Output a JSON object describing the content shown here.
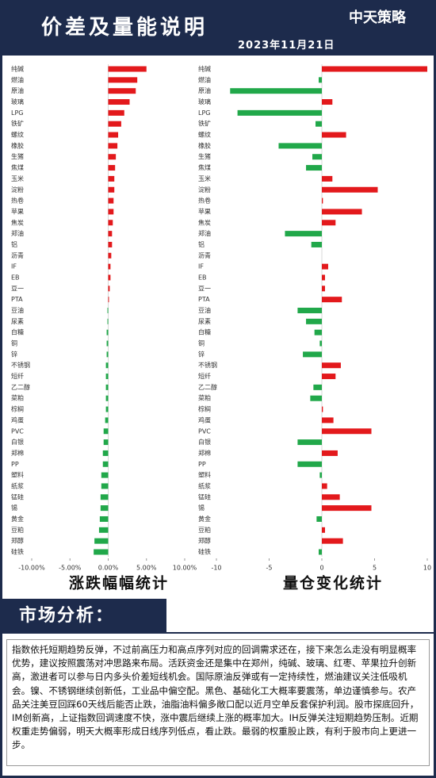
{
  "header": {
    "title": "价差及量能说明",
    "date": "2023年11月21日",
    "logo": "中天策略"
  },
  "chart_data": [
    {
      "type": "bar",
      "orientation": "horizontal",
      "title": "涨跌幅幅统计",
      "categories": [
        "纯碱",
        "燃油",
        "原油",
        "玻璃",
        "LPG",
        "铁矿",
        "螺纹",
        "橡胶",
        "生猪",
        "焦煤",
        "玉米",
        "淀粉",
        "热卷",
        "苹果",
        "焦炭",
        "郑油",
        "铝",
        "沥青",
        "IF",
        "EB",
        "豆一",
        "PTA",
        "豆油",
        "尿素",
        "白糖",
        "铜",
        "锌",
        "不锈钢",
        "短纤",
        "乙二醇",
        "菜粕",
        "棕榈",
        "鸡蛋",
        "PVC",
        "白银",
        "郑棉",
        "PP",
        "塑料",
        "纸浆",
        "锰硅",
        "锡",
        "黄金",
        "豆粕",
        "郑醇",
        "硅铁"
      ],
      "values": [
        5.0,
        3.8,
        3.6,
        2.8,
        2.1,
        1.7,
        1.3,
        1.2,
        1.0,
        0.9,
        0.8,
        0.8,
        0.7,
        0.7,
        0.6,
        0.5,
        0.5,
        0.4,
        0.3,
        0.3,
        0.2,
        0.1,
        -0.1,
        -0.1,
        -0.2,
        -0.2,
        -0.2,
        -0.3,
        -0.3,
        -0.3,
        -0.3,
        -0.3,
        -0.4,
        -0.6,
        -0.6,
        -0.7,
        -0.7,
        -0.9,
        -0.9,
        -1.0,
        -1.0,
        -1.1,
        -1.2,
        -1.8,
        -1.9
      ],
      "xlim": [
        -10,
        10
      ],
      "xticks": [
        {
          "value": -10,
          "label": "-10.00%"
        },
        {
          "value": -5,
          "label": "-5.00%"
        },
        {
          "value": 0,
          "label": "0.00%"
        },
        {
          "value": 5,
          "label": "5.00%"
        },
        {
          "value": 10,
          "label": "10.00%"
        }
      ],
      "positive_color": "#e3191c",
      "negative_color": "#21a84a"
    },
    {
      "type": "bar",
      "orientation": "horizontal",
      "title": "量仓变化统计",
      "categories": [
        "纯碱",
        "燃油",
        "原油",
        "玻璃",
        "LPG",
        "铁矿",
        "螺纹",
        "橡胶",
        "生猪",
        "焦煤",
        "玉米",
        "淀粉",
        "热卷",
        "苹果",
        "焦炭",
        "郑油",
        "铝",
        "沥青",
        "IF",
        "EB",
        "豆一",
        "PTA",
        "豆油",
        "尿素",
        "白糖",
        "铜",
        "锌",
        "不锈钢",
        "短纤",
        "乙二醇",
        "菜粕",
        "棕榈",
        "鸡蛋",
        "PVC",
        "白银",
        "郑棉",
        "PP",
        "塑料",
        "纸浆",
        "锰硅",
        "锡",
        "黄金",
        "豆粕",
        "郑醇",
        "硅铁"
      ],
      "values": [
        10.0,
        -0.3,
        -8.7,
        1.0,
        -8.0,
        -0.6,
        2.3,
        -4.1,
        -0.9,
        -1.5,
        1.0,
        5.3,
        0.1,
        3.8,
        1.3,
        -3.5,
        -1.0,
        0.0,
        0.6,
        0.3,
        0.3,
        1.9,
        -2.3,
        -1.5,
        -0.7,
        -0.2,
        -1.8,
        1.8,
        1.3,
        -0.8,
        -1.1,
        0.1,
        1.1,
        4.7,
        -2.3,
        1.5,
        -2.3,
        -0.2,
        0.5,
        1.7,
        4.7,
        -0.5,
        0.3,
        2.0,
        -0.3
      ],
      "xlim": [
        -10,
        10
      ],
      "xticks": [
        -10,
        -5,
        0,
        5,
        10
      ],
      "positive_color": "#e3191c",
      "negative_color": "#21a84a"
    }
  ],
  "analysis": {
    "heading": "市场分析：",
    "text": "指数依托短期趋势反弹，不过前高压力和高点序列对应的回调需求还在，接下来怎么走没有明显概率优势，建议按照震荡对冲思路来布局。活跃资金还是集中在郑州，纯碱、玻璃、红枣、苹果拉升创新高，激进者可以参与日内多头价差短线机会。国际原油反弹或有一定持续性，燃油建议关注低吸机会。镍、不锈钢继续创新低，工业品中偏空配。黑色、基础化工大概率要震荡，单边谨慎参与。农产品关注美豆回踩60天线后能否止跌，油脂油料偏多敞口配以近月空单反套保护利润。股市探底回升，IM创新高，上证指数回调速度不快，涨中震后继续上涨的概率加大。IH反弹关注短期趋势压制。近期权重走势偏弱，明天大概率形成日线序列低点，看止跌。最弱的权重股止跌，有利于股市向上更进一步。"
  }
}
